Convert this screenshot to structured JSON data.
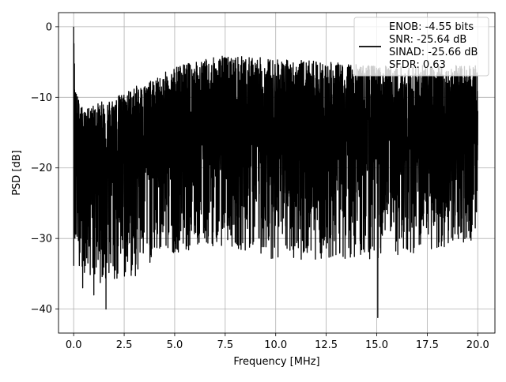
{
  "chart_data": {
    "type": "line",
    "title": "",
    "xlabel": "Frequency [MHz]",
    "ylabel": "PSD [dB]",
    "xlim": [
      -0.75,
      20.85
    ],
    "ylim": [
      -43.4,
      2.0
    ],
    "xticks": [
      0.0,
      2.5,
      5.0,
      7.5,
      10.0,
      12.5,
      15.0,
      17.5,
      20.0
    ],
    "xtick_labels": [
      "0.0",
      "2.5",
      "5.0",
      "7.5",
      "10.0",
      "12.5",
      "15.0",
      "17.5",
      "20.0"
    ],
    "yticks": [
      0,
      -10,
      -20,
      -30,
      -40
    ],
    "ytick_labels": [
      "0",
      "−10",
      "−20",
      "−30",
      "−40"
    ],
    "grid": true,
    "legend_position": "upper-right",
    "legend_lines": [
      "ENOB: -4.55 bits",
      "SNR: -25.64 dB",
      "SINAD: -25.66 dB",
      "SFDR: 0.63"
    ],
    "series": [
      {
        "color": "#000000",
        "description": "dense noise spectrum, 0-20 MHz",
        "x_range": [
          0.0,
          20.0
        ],
        "envelope": {
          "x": [
            0.0,
            0.1,
            0.5,
            1.0,
            2.0,
            3.0,
            4.0,
            5.0,
            7.5,
            10.0,
            12.5,
            15.0,
            17.5,
            20.0
          ],
          "upper": [
            0.0,
            -9.0,
            -12.0,
            -11.0,
            -10.0,
            -8.5,
            -7.5,
            -5.5,
            -4.0,
            -4.5,
            -5.0,
            -5.5,
            -5.5,
            -5.5
          ],
          "lower": [
            -34.0,
            -33.0,
            -35.0,
            -36.0,
            -37.0,
            -36.0,
            -33.0,
            -32.0,
            -31.0,
            -33.0,
            -33.0,
            -33.0,
            -32.0,
            -30.0
          ],
          "median": [
            -14.0,
            -17.5,
            -18.0,
            -18.0,
            -17.5,
            -17.0,
            -16.5,
            -16.0,
            -15.5,
            -15.5,
            -15.5,
            -15.5,
            -15.5,
            -15.5
          ]
        },
        "notable_points": [
          {
            "x": 0.0,
            "y": 0.0
          },
          {
            "x": 1.6,
            "y": -40.0
          },
          {
            "x": 15.05,
            "y": -41.2
          },
          {
            "x": 0.45,
            "y": -37.0
          },
          {
            "x": 1.0,
            "y": -38.0
          }
        ]
      }
    ]
  }
}
